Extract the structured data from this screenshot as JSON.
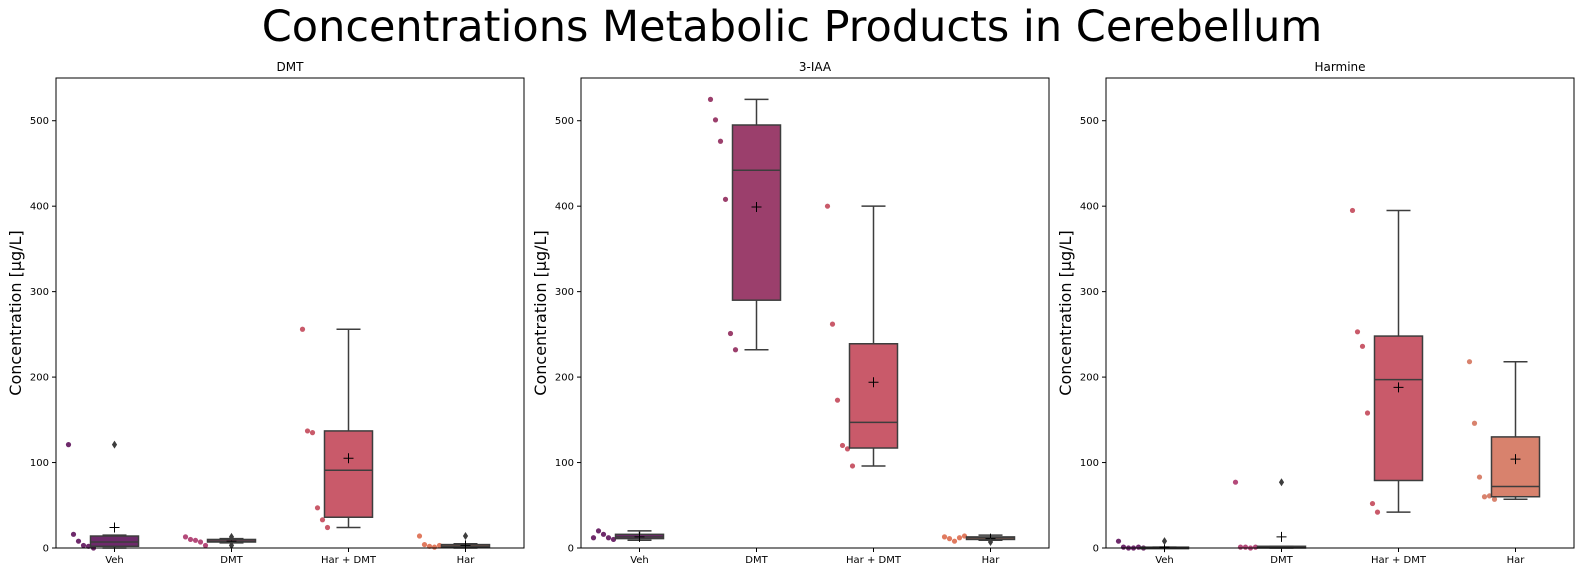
{
  "figure": {
    "title": "Concentrations Metabolic Products in Cerebellum"
  },
  "chart_data": [
    {
      "type": "box",
      "title": "DMT",
      "ylabel": "Concentration [µg/L]",
      "xlabel": "",
      "categories": [
        "Veh",
        "DMT",
        "Har + DMT",
        "Har"
      ],
      "ylim": [
        0,
        550
      ],
      "yticks": [
        0,
        100,
        200,
        300,
        400,
        500
      ],
      "grid": false,
      "colors": [
        "#6e2a6b",
        "#b44a7a",
        "#c95a6a",
        "#e07a5f"
      ],
      "boxes": [
        {
          "category": "Veh",
          "q1": 2,
          "median": 7,
          "q3": 14,
          "whisker_low": 0,
          "whisker_high": 15,
          "mean": 24,
          "outliers": [
            121
          ]
        },
        {
          "category": "DMT",
          "q1": 7,
          "median": 8,
          "q3": 10,
          "whisker_low": 6,
          "whisker_high": 11,
          "mean": 8,
          "outliers": [
            3,
            13
          ]
        },
        {
          "category": "Har + DMT",
          "q1": 36,
          "median": 91,
          "q3": 137,
          "whisker_low": 24,
          "whisker_high": 256,
          "mean": 105,
          "outliers": []
        },
        {
          "category": "Har",
          "q1": 1,
          "median": 2,
          "q3": 4,
          "whisker_low": 0,
          "whisker_high": 5,
          "mean": 3,
          "outliers": [
            14
          ]
        }
      ],
      "points": [
        {
          "category": "Veh",
          "values": [
            121,
            16,
            8,
            3,
            2,
            0
          ]
        },
        {
          "category": "DMT",
          "values": [
            13,
            10,
            9,
            7,
            3
          ]
        },
        {
          "category": "Har + DMT",
          "values": [
            256,
            137,
            135,
            47,
            33,
            24
          ]
        },
        {
          "category": "Har",
          "values": [
            14,
            4,
            2,
            1,
            3
          ]
        }
      ]
    },
    {
      "type": "box",
      "title": "3-IAA",
      "ylabel": "Concentration [µg/L]",
      "xlabel": "",
      "categories": [
        "Veh",
        "DMT",
        "Har + DMT",
        "Har"
      ],
      "ylim": [
        0,
        550
      ],
      "yticks": [
        0,
        100,
        200,
        300,
        400,
        500
      ],
      "grid": false,
      "colors": [
        "#6e2a6b",
        "#9b3f6c",
        "#c95a6a",
        "#e07a5f"
      ],
      "boxes": [
        {
          "category": "Veh",
          "q1": 11,
          "median": 13,
          "q3": 16,
          "whisker_low": 9,
          "whisker_high": 20,
          "mean": 13,
          "outliers": []
        },
        {
          "category": "DMT",
          "q1": 290,
          "median": 442,
          "q3": 495,
          "whisker_low": 232,
          "whisker_high": 525,
          "mean": 399,
          "outliers": []
        },
        {
          "category": "Har + DMT",
          "q1": 117,
          "median": 147,
          "q3": 239,
          "whisker_low": 96,
          "whisker_high": 400,
          "mean": 194,
          "outliers": []
        },
        {
          "category": "Har",
          "q1": 10,
          "median": 12,
          "q3": 13,
          "whisker_low": 9,
          "whisker_high": 15,
          "mean": 11,
          "outliers": [
            7
          ]
        }
      ],
      "points": [
        {
          "category": "Veh",
          "values": [
            12,
            20,
            16,
            12,
            10
          ]
        },
        {
          "category": "DMT",
          "values": [
            525,
            501,
            476,
            408,
            251,
            232
          ]
        },
        {
          "category": "Har + DMT",
          "values": [
            400,
            262,
            173,
            120,
            116,
            96
          ]
        },
        {
          "category": "Har",
          "values": [
            13,
            11,
            8,
            12,
            14
          ]
        }
      ]
    },
    {
      "type": "box",
      "title": "Harmine",
      "ylabel": "Concentration [µg/L]",
      "xlabel": "",
      "categories": [
        "Veh",
        "DMT",
        "Har + DMT",
        "Har"
      ],
      "ylim": [
        0,
        550
      ],
      "yticks": [
        0,
        100,
        200,
        300,
        400,
        500
      ],
      "grid": false,
      "colors": [
        "#6e2a6b",
        "#b44a7a",
        "#c95a6a",
        "#d8826d"
      ],
      "boxes": [
        {
          "category": "Veh",
          "q1": 0,
          "median": 0,
          "q3": 1,
          "whisker_low": 0,
          "whisker_high": 1,
          "mean": 1,
          "outliers": [
            8
          ]
        },
        {
          "category": "DMT",
          "q1": 0,
          "median": 1,
          "q3": 2,
          "whisker_low": 0,
          "whisker_high": 2,
          "mean": 13,
          "outliers": [
            77
          ]
        },
        {
          "category": "Har + DMT",
          "q1": 79,
          "median": 197,
          "q3": 248,
          "whisker_low": 42,
          "whisker_high": 395,
          "mean": 188,
          "outliers": []
        },
        {
          "category": "Har",
          "q1": 60,
          "median": 72,
          "q3": 130,
          "whisker_low": 57,
          "whisker_high": 218,
          "mean": 104,
          "outliers": []
        }
      ],
      "points": [
        {
          "category": "Veh",
          "values": [
            8,
            1,
            0,
            0,
            1,
            0
          ]
        },
        {
          "category": "DMT",
          "values": [
            77,
            1,
            1,
            0,
            1
          ]
        },
        {
          "category": "Har + DMT",
          "values": [
            395,
            253,
            236,
            158,
            52,
            42
          ]
        },
        {
          "category": "Har",
          "values": [
            218,
            146,
            83,
            60,
            61,
            57
          ]
        }
      ]
    }
  ]
}
